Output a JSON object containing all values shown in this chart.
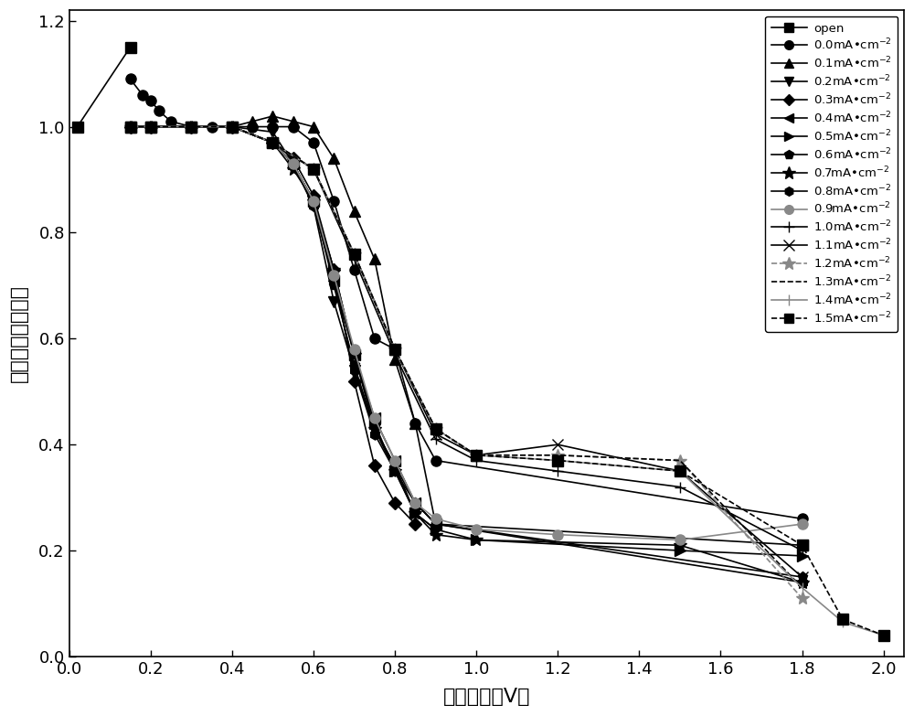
{
  "xlabel": "阳极电位（V）",
  "ylabel": "归一化吸光度比值",
  "xlim": [
    0.0,
    2.05
  ],
  "ylim": [
    0.0,
    1.22
  ],
  "xticks": [
    0.0,
    0.2,
    0.4,
    0.6,
    0.8,
    1.0,
    1.2,
    1.4,
    1.6,
    1.8,
    2.0
  ],
  "yticks": [
    0.0,
    0.2,
    0.4,
    0.6,
    0.8,
    1.0,
    1.2
  ],
  "series": [
    {
      "label": "open",
      "marker": "s",
      "linestyle": "-",
      "color": "#000000",
      "markersize": 9,
      "linewidth": 1.2,
      "x": [
        0.02,
        0.15
      ],
      "y": [
        1.0,
        1.15
      ]
    },
    {
      "label": "0.0mA·cm⁻²",
      "marker": "o",
      "linestyle": "-",
      "color": "#000000",
      "markersize": 8,
      "linewidth": 1.2,
      "x": [
        0.15,
        0.18,
        0.2,
        0.22,
        0.25,
        0.3,
        0.35,
        0.4,
        0.45,
        0.5,
        0.55,
        0.6,
        0.65,
        0.7,
        0.75,
        0.8,
        0.85,
        0.9,
        1.8
      ],
      "y": [
        1.09,
        1.06,
        1.05,
        1.03,
        1.01,
        1.0,
        1.0,
        1.0,
        1.0,
        1.0,
        1.0,
        0.97,
        0.86,
        0.73,
        0.6,
        0.58,
        0.44,
        0.37,
        0.26
      ]
    },
    {
      "label": "0.1mA·cm⁻²",
      "marker": "^",
      "linestyle": "-",
      "color": "#000000",
      "markersize": 8,
      "linewidth": 1.2,
      "x": [
        0.15,
        0.2,
        0.3,
        0.4,
        0.45,
        0.5,
        0.55,
        0.6,
        0.65,
        0.7,
        0.75,
        0.8,
        0.85,
        0.9
      ],
      "y": [
        1.0,
        1.0,
        1.0,
        1.0,
        1.01,
        1.02,
        1.01,
        1.0,
        0.94,
        0.84,
        0.75,
        0.56,
        0.44,
        0.25
      ]
    },
    {
      "label": "0.2mA·cm⁻²",
      "marker": "v",
      "linestyle": "-",
      "color": "#000000",
      "markersize": 8,
      "linewidth": 1.2,
      "x": [
        0.15,
        0.2,
        0.3,
        0.4,
        0.5,
        0.55,
        0.6,
        0.65,
        0.7,
        0.75,
        0.8,
        0.85,
        0.9
      ],
      "y": [
        1.0,
        1.0,
        1.0,
        1.0,
        0.99,
        0.93,
        0.85,
        0.67,
        0.54,
        0.43,
        0.36,
        0.27,
        0.24
      ]
    },
    {
      "label": "0.3mA·cm⁻²",
      "marker": "D",
      "linestyle": "-",
      "color": "#000000",
      "markersize": 7,
      "linewidth": 1.2,
      "x": [
        0.15,
        0.2,
        0.3,
        0.4,
        0.5,
        0.55,
        0.6,
        0.65,
        0.7,
        0.75,
        0.8,
        0.85
      ],
      "y": [
        1.0,
        1.0,
        1.0,
        1.0,
        0.97,
        0.94,
        0.87,
        0.73,
        0.52,
        0.36,
        0.29,
        0.25
      ]
    },
    {
      "label": "0.4mA·cm⁻²",
      "marker": "<",
      "linestyle": "-",
      "color": "#000000",
      "markersize": 8,
      "linewidth": 1.2,
      "x": [
        0.15,
        0.2,
        0.3,
        0.4,
        0.5,
        0.55,
        0.6,
        0.65,
        0.7,
        0.75,
        0.8,
        0.85,
        0.9,
        1.8
      ],
      "y": [
        1.0,
        1.0,
        1.0,
        1.0,
        0.97,
        0.93,
        0.86,
        0.71,
        0.57,
        0.45,
        0.37,
        0.29,
        0.25,
        0.21
      ]
    },
    {
      "label": "0.5mA·cm⁻²",
      "marker": ">",
      "linestyle": "-",
      "color": "#000000",
      "markersize": 8,
      "linewidth": 1.2,
      "x": [
        0.15,
        0.2,
        0.3,
        0.4,
        0.5,
        0.55,
        0.6,
        0.65,
        0.7,
        0.75,
        0.8,
        0.85,
        0.9,
        1.0,
        1.5,
        1.8
      ],
      "y": [
        1.0,
        1.0,
        1.0,
        1.0,
        0.97,
        0.93,
        0.86,
        0.73,
        0.57,
        0.44,
        0.35,
        0.27,
        0.24,
        0.22,
        0.2,
        0.19
      ]
    },
    {
      "label": "0.6mA·cm⁻²",
      "marker": "p",
      "linestyle": "-",
      "color": "#000000",
      "markersize": 8,
      "linewidth": 1.2,
      "x": [
        0.15,
        0.2,
        0.3,
        0.4,
        0.5,
        0.55,
        0.6,
        0.65,
        0.7,
        0.75,
        0.8,
        0.85,
        0.9,
        1.8
      ],
      "y": [
        1.0,
        1.0,
        1.0,
        1.0,
        0.97,
        0.93,
        0.86,
        0.7,
        0.55,
        0.43,
        0.36,
        0.29,
        0.25,
        0.15
      ]
    },
    {
      "label": "0.7mA·cm⁻²",
      "marker": "*",
      "linestyle": "-",
      "color": "#000000",
      "markersize": 10,
      "linewidth": 1.2,
      "x": [
        0.15,
        0.2,
        0.3,
        0.4,
        0.5,
        0.55,
        0.6,
        0.65,
        0.7,
        0.75,
        0.8,
        0.85,
        0.9,
        1.0,
        1.5,
        1.8
      ],
      "y": [
        1.0,
        1.0,
        1.0,
        1.0,
        0.97,
        0.92,
        0.86,
        0.73,
        0.57,
        0.43,
        0.35,
        0.27,
        0.23,
        0.22,
        0.21,
        0.14
      ]
    },
    {
      "label": "0.8mA·cm⁻²",
      "marker": "h",
      "linestyle": "-",
      "color": "#000000",
      "markersize": 8,
      "linewidth": 1.2,
      "x": [
        0.15,
        0.2,
        0.3,
        0.4,
        0.5,
        0.55,
        0.6,
        0.65,
        0.7,
        0.75,
        0.8,
        0.85,
        0.9,
        1.8
      ],
      "y": [
        1.0,
        1.0,
        1.0,
        1.0,
        0.97,
        0.93,
        0.85,
        0.71,
        0.54,
        0.42,
        0.35,
        0.29,
        0.25,
        0.14
      ]
    },
    {
      "label": "0.9mA·cm⁻²",
      "marker": "o",
      "linestyle": "-",
      "color": "#888888",
      "markersize": 8,
      "linewidth": 1.2,
      "x": [
        0.15,
        0.2,
        0.3,
        0.4,
        0.5,
        0.55,
        0.6,
        0.65,
        0.7,
        0.75,
        0.8,
        0.85,
        0.9,
        1.0,
        1.2,
        1.5,
        1.8
      ],
      "y": [
        1.0,
        1.0,
        1.0,
        1.0,
        0.97,
        0.93,
        0.86,
        0.72,
        0.58,
        0.45,
        0.37,
        0.29,
        0.26,
        0.24,
        0.23,
        0.22,
        0.25
      ]
    },
    {
      "label": "1.0mA·cm⁻²",
      "marker": "+",
      "linestyle": "-",
      "color": "#000000",
      "markersize": 9,
      "linewidth": 1.2,
      "x": [
        0.15,
        0.2,
        0.3,
        0.4,
        0.5,
        0.6,
        0.7,
        0.8,
        0.9,
        1.0,
        1.2,
        1.5,
        1.8
      ],
      "y": [
        1.0,
        1.0,
        1.0,
        1.0,
        0.97,
        0.92,
        0.75,
        0.57,
        0.41,
        0.37,
        0.35,
        0.32,
        0.2
      ]
    },
    {
      "label": "1.1mA·cm⁻²",
      "marker": "x",
      "linestyle": "-",
      "color": "#000000",
      "markersize": 9,
      "linewidth": 1.2,
      "x": [
        0.15,
        0.2,
        0.3,
        0.4,
        0.5,
        0.6,
        0.7,
        0.8,
        0.9,
        1.0,
        1.2,
        1.5,
        1.8
      ],
      "y": [
        1.0,
        1.0,
        1.0,
        1.0,
        0.97,
        0.92,
        0.76,
        0.58,
        0.42,
        0.38,
        0.4,
        0.35,
        0.15
      ]
    },
    {
      "label": "1.2mA·cm⁻²",
      "marker": "*",
      "linestyle": "--",
      "color": "#888888",
      "markersize": 10,
      "linewidth": 1.2,
      "x": [
        0.15,
        0.2,
        0.3,
        0.4,
        0.5,
        0.6,
        0.7,
        0.8,
        0.9,
        1.0,
        1.2,
        1.5,
        1.8
      ],
      "y": [
        1.0,
        1.0,
        1.0,
        1.0,
        0.97,
        0.92,
        0.76,
        0.58,
        0.43,
        0.38,
        0.38,
        0.37,
        0.11
      ]
    },
    {
      "label": "1.3mA·cm⁻²",
      "marker": "",
      "linestyle": "--",
      "color": "#000000",
      "markersize": 0,
      "linewidth": 1.2,
      "x": [
        0.15,
        0.2,
        0.3,
        0.4,
        0.5,
        0.6,
        0.7,
        0.8,
        0.9,
        1.0,
        1.2,
        1.5,
        1.8
      ],
      "y": [
        1.0,
        1.0,
        1.0,
        1.0,
        0.97,
        0.92,
        0.76,
        0.58,
        0.43,
        0.38,
        0.38,
        0.37,
        0.13
      ]
    },
    {
      "label": "1.4mA·cm⁻²",
      "marker": "|",
      "linestyle": "-",
      "color": "#888888",
      "markersize": 9,
      "linewidth": 1.2,
      "x": [
        0.15,
        0.2,
        0.3,
        0.4,
        0.5,
        0.6,
        0.7,
        0.8,
        0.9,
        1.0,
        1.2,
        1.5,
        1.8,
        1.9,
        2.0
      ],
      "y": [
        1.0,
        1.0,
        1.0,
        1.0,
        0.97,
        0.92,
        0.76,
        0.58,
        0.43,
        0.38,
        0.37,
        0.35,
        0.13,
        0.065,
        0.04
      ]
    },
    {
      "label": "1.5mA·cm⁻²",
      "marker": "s",
      "linestyle": "--",
      "color": "#000000",
      "markersize": 8,
      "linewidth": 1.2,
      "x": [
        0.15,
        0.2,
        0.3,
        0.4,
        0.5,
        0.6,
        0.7,
        0.8,
        0.9,
        1.0,
        1.2,
        1.5,
        1.8,
        1.9,
        2.0
      ],
      "y": [
        1.0,
        1.0,
        1.0,
        1.0,
        0.97,
        0.92,
        0.76,
        0.58,
        0.43,
        0.38,
        0.37,
        0.35,
        0.21,
        0.07,
        0.04
      ]
    }
  ],
  "legend_labels": [
    "open",
    "0.0mA•cm$^{-2}$",
    "0.1mA•cm$^{-2}$",
    "0.2mA•cm$^{-2}$",
    "0.3mA•cm$^{-2}$",
    "0.4mA•cm$^{-2}$",
    "0.5mA•cm$^{-2}$",
    "0.6mA•cm$^{-2}$",
    "0.7mA•cm$^{-2}$",
    "0.8mA•cm$^{-2}$",
    "0.9mA•cm$^{-2}$",
    "1.0mA•cm$^{-2}$",
    "1.1mA•cm$^{-2}$",
    "1.2mA•cm$^{-2}$",
    "1.3mA•cm$^{-2}$",
    "1.4mA•cm$^{-2}$",
    "1.5mA•cm$^{-2}$"
  ]
}
